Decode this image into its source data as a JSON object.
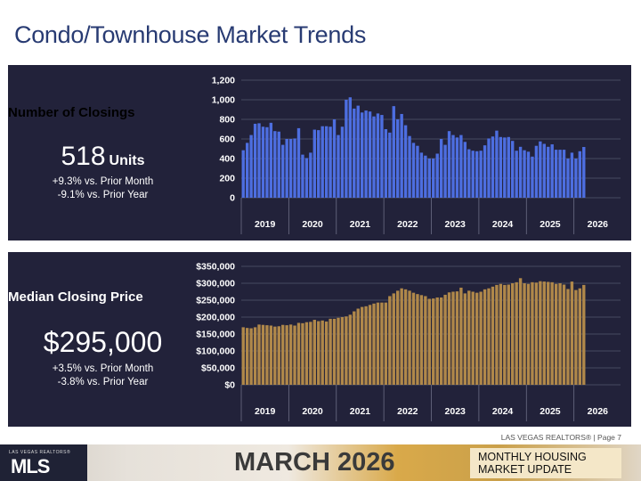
{
  "page": {
    "title": "Condo/Townhouse Market Trends",
    "credit": "LAS VEGAS REALTORS® | Page 7",
    "footer_title": "MARCH 2026",
    "footer_tag": "MONTHLY HOUSING MARKET UPDATE",
    "logo_text": "MLS",
    "logo_small": "LAS VEGAS REALTORS®"
  },
  "closings": {
    "label": "Number of Closings",
    "value": "518",
    "unit": "Units",
    "change_month": "+9.3% vs. Prior Month",
    "change_year": "-9.1% vs. Prior Year"
  },
  "price": {
    "label": "Median Closing Price",
    "value": "$295,000",
    "change_month": "+3.5% vs. Prior Month",
    "change_year": "-3.8% vs. Prior Year"
  },
  "chart_data": [
    {
      "type": "bar",
      "color": "#4d6ee0",
      "ylim": [
        0,
        1200
      ],
      "yticks": [
        0,
        200,
        400,
        600,
        800,
        1000,
        1200
      ],
      "ytick_labels": [
        "0",
        "200",
        "400",
        "600",
        "800",
        "1,000",
        "1,200"
      ],
      "year_labels": [
        "2019",
        "2020",
        "2021",
        "2022",
        "2023",
        "2024",
        "2025",
        "2026"
      ],
      "values": [
        485,
        560,
        640,
        755,
        760,
        725,
        720,
        765,
        680,
        675,
        540,
        600,
        600,
        605,
        710,
        440,
        405,
        460,
        695,
        690,
        730,
        730,
        725,
        800,
        640,
        725,
        1000,
        1025,
        910,
        940,
        870,
        890,
        880,
        830,
        860,
        845,
        700,
        665,
        935,
        800,
        855,
        740,
        630,
        560,
        530,
        460,
        430,
        400,
        400,
        450,
        600,
        540,
        680,
        640,
        615,
        640,
        570,
        495,
        480,
        475,
        480,
        535,
        605,
        625,
        685,
        620,
        615,
        620,
        580,
        480,
        520,
        485,
        470,
        420,
        530,
        575,
        550,
        520,
        545,
        490,
        490,
        490,
        400,
        460,
        400,
        475,
        518
      ]
    },
    {
      "type": "bar",
      "color": "#b0884a",
      "ylim": [
        0,
        350000
      ],
      "yticks": [
        0,
        50000,
        100000,
        150000,
        200000,
        250000,
        300000,
        350000
      ],
      "ytick_labels": [
        "$0",
        "$50,000",
        "$100,000",
        "$150,000",
        "$200,000",
        "$250,000",
        "$300,000",
        "$350,000"
      ],
      "year_labels": [
        "2019",
        "2020",
        "2021",
        "2022",
        "2023",
        "2024",
        "2025",
        "2026"
      ],
      "values": [
        170000,
        168000,
        167000,
        170000,
        178000,
        177000,
        176000,
        175000,
        172000,
        173000,
        177000,
        176000,
        178000,
        175000,
        183000,
        182000,
        185000,
        186000,
        192000,
        188000,
        190000,
        187000,
        195000,
        195000,
        198000,
        200000,
        202000,
        207000,
        217000,
        225000,
        230000,
        232000,
        236000,
        240000,
        243000,
        243000,
        243000,
        262000,
        270000,
        278000,
        285000,
        282000,
        278000,
        272000,
        268000,
        265000,
        262000,
        254000,
        255000,
        258000,
        258000,
        266000,
        273000,
        275000,
        276000,
        287000,
        270000,
        278000,
        275000,
        272000,
        275000,
        282000,
        285000,
        290000,
        295000,
        298000,
        295000,
        296000,
        300000,
        303000,
        315000,
        300000,
        298000,
        303000,
        302000,
        306000,
        305000,
        304000,
        303000,
        298000,
        300000,
        296000,
        283000,
        305000,
        280000,
        285000,
        295000
      ]
    }
  ]
}
